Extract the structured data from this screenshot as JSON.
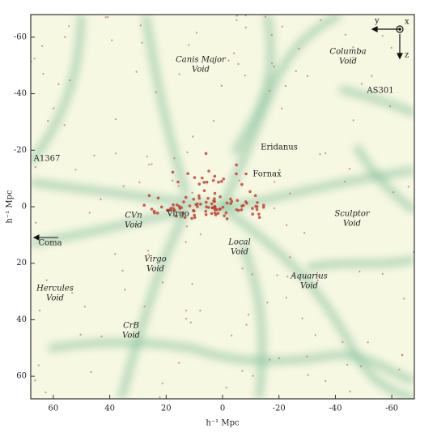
{
  "chart_data": {
    "type": "map",
    "xlabel": "h⁻¹ Mpc",
    "ylabel": "h⁻¹ Mpc",
    "xlim": [
      68,
      -68
    ],
    "ylim": [
      -68,
      68
    ],
    "xticks": [
      60,
      40,
      20,
      0,
      -20,
      -40,
      -60
    ],
    "yticks": [
      -60,
      -40,
      -20,
      0,
      20,
      40,
      60
    ],
    "annotations": [
      {
        "lines": [
          "Canis Major",
          "Void"
        ],
        "style": "void"
      },
      {
        "lines": [
          "Columba",
          "Void"
        ],
        "style": "void"
      },
      {
        "lines": [
          "AS301"
        ],
        "style": "cluster"
      },
      {
        "lines": [
          "Eridanus"
        ],
        "style": "cluster"
      },
      {
        "lines": [
          "A1367"
        ],
        "style": "cluster"
      },
      {
        "lines": [
          "Fornax"
        ],
        "style": "cluster"
      },
      {
        "lines": [
          "Virgo"
        ],
        "style": "cluster"
      },
      {
        "lines": [
          "CVn",
          "Void"
        ],
        "style": "void"
      },
      {
        "lines": [
          "Sculptor",
          "Void"
        ],
        "style": "void"
      },
      {
        "lines": [
          "Coma"
        ],
        "style": "cluster"
      },
      {
        "lines": [
          "Local",
          "Void"
        ],
        "style": "void"
      },
      {
        "lines": [
          "Virgo",
          "Void"
        ],
        "style": "void"
      },
      {
        "lines": [
          "Aquarius",
          "Void"
        ],
        "style": "void"
      },
      {
        "lines": [
          "Hercules",
          "Void"
        ],
        "style": "void"
      },
      {
        "lines": [
          "CrB",
          "Void"
        ],
        "style": "void"
      }
    ],
    "compass": {
      "y": "y",
      "x": "x",
      "z": "z"
    }
  }
}
